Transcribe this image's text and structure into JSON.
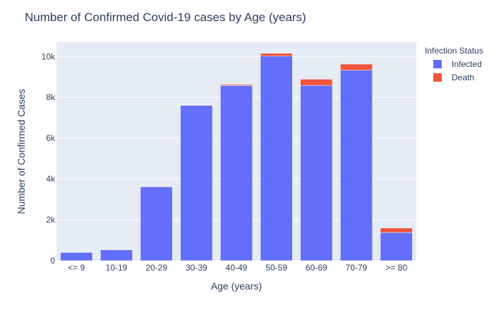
{
  "chart_data": {
    "type": "bar",
    "stacked": true,
    "title": "Number of Confirmed Covid-19 cases by Age (years)",
    "xlabel": "Age (years)",
    "ylabel": "Number of Confirmed Cases",
    "categories": [
      "<= 9",
      "10-19",
      "20-29",
      "30-39",
      "40-49",
      "50-59",
      "60-69",
      "70-79",
      ">= 80"
    ],
    "series": [
      {
        "name": "Infected",
        "color": "#636efa",
        "values": [
          400,
          530,
          3620,
          7610,
          8580,
          10020,
          8590,
          9330,
          1380
        ]
      },
      {
        "name": "Death",
        "color": "#ef553b",
        "values": [
          0,
          0,
          10,
          20,
          50,
          140,
          300,
          300,
          220
        ]
      }
    ],
    "ylim": [
      0,
      10700
    ],
    "yticks": [
      0,
      2000,
      4000,
      6000,
      8000,
      10000
    ],
    "ytick_labels": [
      "0",
      "2k",
      "4k",
      "6k",
      "8k",
      "10k"
    ],
    "legend": {
      "title": "Infection Status",
      "placement": "top-right"
    },
    "grid": true,
    "plot_bg": "#e5ecf6"
  }
}
